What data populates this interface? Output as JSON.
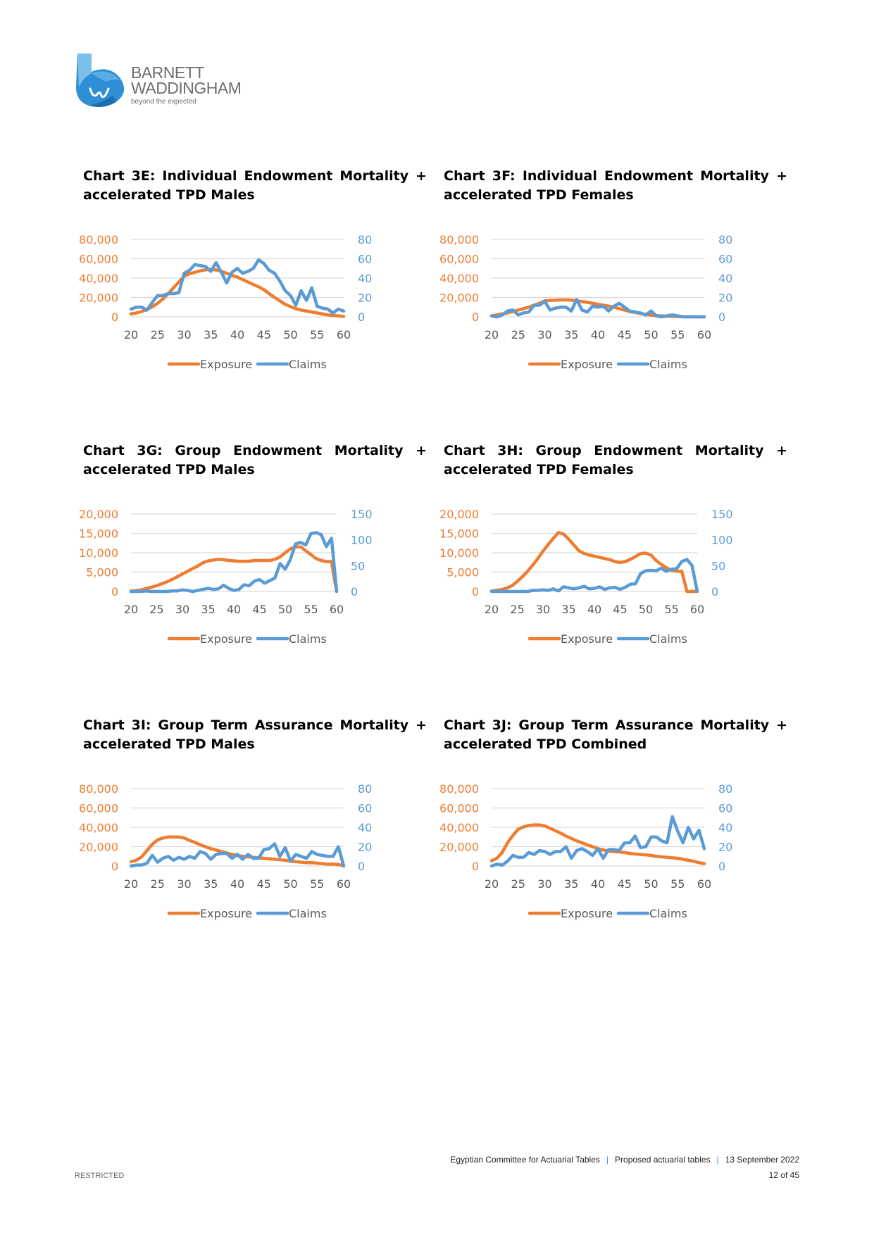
{
  "logo": {
    "line1": "BARNETT",
    "line2": "WADDINGHAM",
    "tagline": "beyond the expected"
  },
  "colors": {
    "exposure": "#ED7D31",
    "claims": "#5B9BD5",
    "grid": "#D9D9D9",
    "axis_text": "#595959"
  },
  "footer": {
    "org": "Egyptian Committee for Actuarial Tables",
    "doc": "Proposed actuarial tables",
    "date": "13 September 2022",
    "separator": "|",
    "page": "12 of 45",
    "classification": "RESTRICTED"
  },
  "chart_data": [
    {
      "id": "3E",
      "type": "line",
      "title_line1": "Chart 3E: Individual Endowment Mortality +",
      "title_line2": "accelerated TPD Males",
      "x": [
        20,
        21,
        22,
        23,
        24,
        25,
        26,
        27,
        28,
        29,
        30,
        31,
        32,
        33,
        34,
        35,
        36,
        37,
        38,
        39,
        40,
        41,
        42,
        43,
        44,
        45,
        46,
        47,
        48,
        49,
        50,
        51,
        52,
        53,
        54,
        55,
        56,
        57,
        58,
        59,
        60
      ],
      "xticks": [
        "20",
        "25",
        "30",
        "35",
        "40",
        "45",
        "50",
        "55",
        "60"
      ],
      "xlim": [
        20,
        60
      ],
      "left_axis": {
        "ylim": [
          0,
          80000
        ],
        "ticks": [
          "0",
          "20,000",
          "40,000",
          "60,000",
          "80,000"
        ],
        "tick_values": [
          0,
          20000,
          40000,
          60000,
          80000
        ]
      },
      "right_axis": {
        "ylim": [
          0,
          80
        ],
        "ticks": [
          "0",
          "20",
          "40",
          "60",
          "80"
        ],
        "tick_values": [
          0,
          20,
          40,
          60,
          80
        ]
      },
      "series": [
        {
          "name": "Exposure",
          "axis": "left",
          "values": [
            3000,
            4000,
            5500,
            7500,
            10500,
            14000,
            18500,
            24000,
            30000,
            36000,
            42000,
            44500,
            46000,
            47500,
            48500,
            49000,
            48500,
            47000,
            45000,
            43000,
            41000,
            38500,
            36000,
            33500,
            31000,
            28000,
            24000,
            20000,
            16500,
            13000,
            10500,
            8500,
            7000,
            6000,
            5000,
            4000,
            3000,
            2000,
            1500,
            1000,
            500
          ]
        },
        {
          "name": "Claims",
          "axis": "right",
          "values": [
            8,
            10,
            10,
            7,
            15,
            22,
            22,
            24,
            24,
            25,
            45,
            48,
            54,
            53,
            52,
            47,
            56,
            46,
            35,
            46,
            50,
            45,
            47,
            50,
            59,
            55,
            48,
            45,
            37,
            27,
            22,
            12,
            27,
            17,
            30,
            11,
            9,
            8,
            4,
            8,
            6
          ]
        }
      ],
      "legend": [
        "Exposure",
        "Claims"
      ],
      "legend_position": "bottom",
      "grid": true
    },
    {
      "id": "3F",
      "type": "line",
      "title_line1": "Chart 3F: Individual Endowment Mortality +",
      "title_line2": "accelerated TPD Females",
      "x": [
        20,
        21,
        22,
        23,
        24,
        25,
        26,
        27,
        28,
        29,
        30,
        31,
        32,
        33,
        34,
        35,
        36,
        37,
        38,
        39,
        40,
        41,
        42,
        43,
        44,
        45,
        46,
        47,
        48,
        49,
        50,
        51,
        52,
        53,
        54,
        55,
        56,
        57,
        58,
        59,
        60
      ],
      "xticks": [
        "20",
        "25",
        "30",
        "35",
        "40",
        "45",
        "50",
        "55",
        "60"
      ],
      "xlim": [
        20,
        60
      ],
      "left_axis": {
        "ylim": [
          0,
          80000
        ],
        "ticks": [
          "0",
          "20,000",
          "40,000",
          "60,000",
          "80,000"
        ],
        "tick_values": [
          0,
          20000,
          40000,
          60000,
          80000
        ]
      },
      "right_axis": {
        "ylim": [
          0,
          80
        ],
        "ticks": [
          "0",
          "20",
          "40",
          "60",
          "80"
        ],
        "tick_values": [
          0,
          20,
          40,
          60,
          80
        ]
      },
      "series": [
        {
          "name": "Exposure",
          "axis": "left",
          "values": [
            1000,
            2000,
            3000,
            4000,
            5500,
            7000,
            8500,
            10000,
            12000,
            14000,
            16500,
            17000,
            17200,
            17500,
            17500,
            17300,
            16500,
            15800,
            15000,
            14000,
            13000,
            12000,
            11000,
            10000,
            8500,
            7000,
            5500,
            4500,
            3500,
            2500,
            1800,
            1300,
            1000,
            700,
            500,
            300,
            200,
            100,
            100,
            0,
            0
          ]
        },
        {
          "name": "Claims",
          "axis": "right",
          "values": [
            1,
            0,
            2,
            6,
            7,
            2,
            4,
            5,
            12,
            12,
            16,
            7,
            9,
            10,
            10,
            6,
            18,
            7,
            5,
            11,
            10,
            11,
            6,
            11,
            14,
            10,
            6,
            5,
            4,
            2,
            6,
            1,
            0,
            1,
            2,
            1,
            0,
            0,
            0,
            0,
            0
          ]
        }
      ],
      "legend": [
        "Exposure",
        "Claims"
      ],
      "legend_position": "bottom",
      "grid": true
    },
    {
      "id": "3G",
      "type": "line",
      "title_line1": "Chart 3G: Group Endowment Mortality +",
      "title_line2": "accelerated TPD Males",
      "x": [
        20,
        21,
        22,
        23,
        24,
        25,
        26,
        27,
        28,
        29,
        30,
        31,
        32,
        33,
        34,
        35,
        36,
        37,
        38,
        39,
        40,
        41,
        42,
        43,
        44,
        45,
        46,
        47,
        48,
        49,
        50,
        51,
        52,
        53,
        54,
        55,
        56,
        57,
        58,
        59,
        60
      ],
      "xticks": [
        "20",
        "25",
        "30",
        "35",
        "40",
        "45",
        "50",
        "55",
        "60"
      ],
      "xlim": [
        20,
        60
      ],
      "left_axis": {
        "ylim": [
          0,
          20000
        ],
        "ticks": [
          "0",
          "5,000",
          "10,000",
          "15,000",
          "20,000"
        ],
        "tick_values": [
          0,
          5000,
          10000,
          15000,
          20000
        ]
      },
      "right_axis": {
        "ylim": [
          0,
          150
        ],
        "ticks": [
          "0",
          "50",
          "100",
          "150"
        ],
        "tick_values": [
          0,
          50,
          100,
          150
        ]
      },
      "series": [
        {
          "name": "Exposure",
          "axis": "left",
          "values": [
            100,
            200,
            400,
            800,
            1100,
            1500,
            2000,
            2500,
            3100,
            3800,
            4500,
            5200,
            5900,
            6600,
            7400,
            7900,
            8100,
            8300,
            8200,
            8000,
            7900,
            7800,
            7800,
            7800,
            8000,
            8000,
            8000,
            8000,
            8300,
            8900,
            10000,
            11000,
            11500,
            11500,
            10500,
            9500,
            8500,
            8000,
            7700,
            7700,
            0
          ]
        },
        {
          "name": "Claims",
          "axis": "right",
          "values": [
            0,
            0,
            0,
            1,
            0,
            0,
            0,
            0,
            1,
            1,
            3,
            2,
            0,
            2,
            4,
            6,
            4,
            5,
            12,
            6,
            2,
            4,
            13,
            11,
            20,
            23,
            16,
            21,
            26,
            54,
            43,
            62,
            92,
            95,
            90,
            112,
            114,
            110,
            87,
            103,
            0
          ]
        }
      ],
      "legend": [
        "Exposure",
        "Claims"
      ],
      "legend_position": "bottom",
      "grid": true
    },
    {
      "id": "3H",
      "type": "line",
      "title_line1": "Chart 3H: Group Endowment Mortality +",
      "title_line2": "accelerated TPD Females",
      "x": [
        20,
        21,
        22,
        23,
        24,
        25,
        26,
        27,
        28,
        29,
        30,
        31,
        32,
        33,
        34,
        35,
        36,
        37,
        38,
        39,
        40,
        41,
        42,
        43,
        44,
        45,
        46,
        47,
        48,
        49,
        50,
        51,
        52,
        53,
        54,
        55,
        56,
        57,
        58,
        59,
        60
      ],
      "xticks": [
        "20",
        "25",
        "30",
        "35",
        "40",
        "45",
        "50",
        "55",
        "60"
      ],
      "xlim": [
        20,
        60
      ],
      "left_axis": {
        "ylim": [
          0,
          20000
        ],
        "ticks": [
          "0",
          "5,000",
          "10,000",
          "15,000",
          "20,000"
        ],
        "tick_values": [
          0,
          5000,
          10000,
          15000,
          20000
        ]
      },
      "right_axis": {
        "ylim": [
          0,
          150
        ],
        "ticks": [
          "0",
          "50",
          "100",
          "150"
        ],
        "tick_values": [
          0,
          50,
          100,
          150
        ]
      },
      "series": [
        {
          "name": "Exposure",
          "axis": "left",
          "values": [
            100,
            300,
            500,
            900,
            1500,
            2600,
            3800,
            5200,
            6800,
            8500,
            10400,
            12100,
            13700,
            15200,
            14800,
            13500,
            12000,
            10500,
            9800,
            9400,
            9100,
            8800,
            8500,
            8200,
            7700,
            7500,
            7700,
            8300,
            9000,
            9800,
            9900,
            9400,
            8000,
            7000,
            6100,
            5500,
            5200,
            5200,
            0,
            0,
            0
          ]
        },
        {
          "name": "Claims",
          "axis": "right",
          "values": [
            0,
            0,
            0,
            0,
            0,
            0,
            0,
            0,
            2,
            2,
            3,
            2,
            5,
            1,
            9,
            7,
            5,
            7,
            10,
            5,
            6,
            9,
            4,
            7,
            8,
            4,
            8,
            14,
            15,
            35,
            40,
            41,
            40,
            45,
            39,
            43,
            44,
            58,
            62,
            50,
            0
          ]
        }
      ],
      "legend": [
        "Exposure",
        "Claims"
      ],
      "legend_position": "bottom",
      "grid": true
    },
    {
      "id": "3I",
      "type": "line",
      "title_line1": "Chart 3I: Group Term Assurance Mortality +",
      "title_line2": "accelerated TPD Males",
      "x": [
        20,
        21,
        22,
        23,
        24,
        25,
        26,
        27,
        28,
        29,
        30,
        31,
        32,
        33,
        34,
        35,
        36,
        37,
        38,
        39,
        40,
        41,
        42,
        43,
        44,
        45,
        46,
        47,
        48,
        49,
        50,
        51,
        52,
        53,
        54,
        55,
        56,
        57,
        58,
        59,
        60
      ],
      "xticks": [
        "20",
        "25",
        "30",
        "35",
        "40",
        "45",
        "50",
        "55",
        "60"
      ],
      "xlim": [
        20,
        60
      ],
      "left_axis": {
        "ylim": [
          0,
          80000
        ],
        "ticks": [
          "0",
          "20,000",
          "40,000",
          "60,000",
          "80,000"
        ],
        "tick_values": [
          0,
          20000,
          40000,
          60000,
          80000
        ]
      },
      "right_axis": {
        "ylim": [
          0,
          80
        ],
        "ticks": [
          "0",
          "20",
          "40",
          "60",
          "80"
        ],
        "tick_values": [
          0,
          20,
          40,
          60,
          80
        ]
      },
      "series": [
        {
          "name": "Exposure",
          "axis": "left",
          "values": [
            4500,
            6000,
            9500,
            16000,
            22500,
            27000,
            29000,
            30000,
            30000,
            30000,
            29000,
            26500,
            24500,
            22000,
            20000,
            18000,
            16500,
            15000,
            13500,
            12000,
            11000,
            10000,
            9500,
            9000,
            8500,
            8000,
            7500,
            7000,
            6500,
            6000,
            5000,
            4500,
            4000,
            3500,
            3500,
            3000,
            2500,
            2000,
            2000,
            1500,
            500
          ]
        },
        {
          "name": "Claims",
          "axis": "right",
          "values": [
            0,
            1,
            1,
            3,
            11,
            4,
            8,
            10,
            6,
            9,
            7,
            10,
            8,
            15,
            13,
            7,
            12,
            13,
            13,
            8,
            12,
            7,
            12,
            8,
            8,
            17,
            18,
            23,
            10,
            19,
            5,
            12,
            10,
            8,
            15,
            12,
            11,
            10,
            10,
            20,
            0
          ]
        }
      ],
      "legend": [
        "Exposure",
        "Claims"
      ],
      "legend_position": "bottom",
      "grid": true
    },
    {
      "id": "3J",
      "type": "line",
      "title_line1": "Chart 3J: Group Term Assurance Mortality +",
      "title_line2": "accelerated TPD Combined",
      "x": [
        20,
        21,
        22,
        23,
        24,
        25,
        26,
        27,
        28,
        29,
        30,
        31,
        32,
        33,
        34,
        35,
        36,
        37,
        38,
        39,
        40,
        41,
        42,
        43,
        44,
        45,
        46,
        47,
        48,
        49,
        50,
        51,
        52,
        53,
        54,
        55,
        56,
        57,
        58,
        59,
        60
      ],
      "xticks": [
        "20",
        "25",
        "30",
        "35",
        "40",
        "45",
        "50",
        "55",
        "60"
      ],
      "xlim": [
        20,
        60
      ],
      "left_axis": {
        "ylim": [
          0,
          80000
        ],
        "ticks": [
          "0",
          "20,000",
          "40,000",
          "60,000",
          "80,000"
        ],
        "tick_values": [
          0,
          20000,
          40000,
          60000,
          80000
        ]
      },
      "right_axis": {
        "ylim": [
          0,
          80
        ],
        "ticks": [
          "0",
          "20",
          "40",
          "60",
          "80"
        ],
        "tick_values": [
          0,
          20,
          40,
          60,
          80
        ]
      },
      "series": [
        {
          "name": "Exposure",
          "axis": "left",
          "values": [
            5500,
            8000,
            14000,
            24000,
            31500,
            38000,
            40500,
            42000,
            42500,
            42500,
            41500,
            39000,
            36500,
            34000,
            31000,
            28500,
            26000,
            24000,
            22000,
            20000,
            18000,
            16500,
            15500,
            15000,
            14500,
            14000,
            13000,
            12500,
            12000,
            11500,
            11000,
            10000,
            9500,
            9000,
            8500,
            8000,
            7000,
            6000,
            5000,
            3500,
            2500
          ]
        },
        {
          "name": "Claims",
          "axis": "right",
          "values": [
            0,
            2,
            1,
            5,
            11,
            9,
            9,
            14,
            12,
            16,
            15,
            12,
            15,
            15,
            20,
            8,
            16,
            18,
            15,
            11,
            18,
            8,
            17,
            17,
            16,
            24,
            24,
            31,
            19,
            20,
            30,
            30,
            26,
            24,
            51,
            36,
            24,
            40,
            28,
            37,
            18
          ]
        }
      ],
      "legend": [
        "Exposure",
        "Claims"
      ],
      "legend_position": "bottom",
      "grid": true
    }
  ]
}
